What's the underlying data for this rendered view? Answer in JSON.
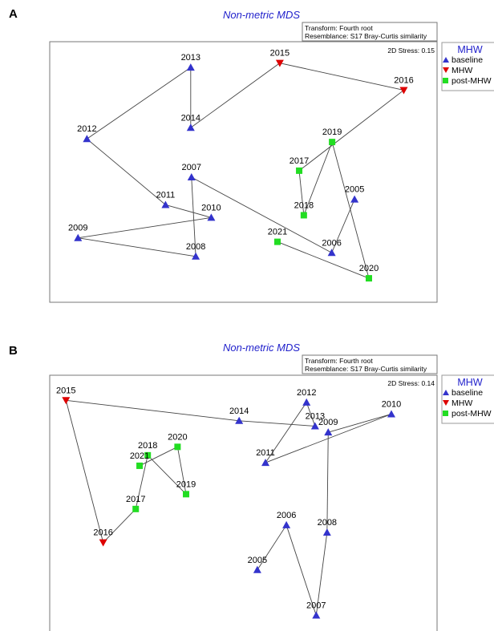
{
  "colors": {
    "baseline": "#3333cc",
    "MHW": "#dd0000",
    "post-MHW": "#22dd22",
    "title": "#2222cc",
    "line": "#444444"
  },
  "legend": {
    "title": "MHW",
    "entries": [
      {
        "group": "baseline",
        "label": "baseline",
        "marker": "triangle-up"
      },
      {
        "group": "MHW",
        "label": "MHW",
        "marker": "triangle-down"
      },
      {
        "group": "post-MHW",
        "label": "post-MHW",
        "marker": "square"
      }
    ]
  },
  "chart_data": [
    {
      "panel": "A",
      "type": "scatter",
      "title": "Non-metric MDS",
      "transform": "Transform: Fourth root",
      "resemblance": "Resemblance: S17 Bray-Curtis similarity",
      "stress": "2D Stress: 0.15",
      "xlim": [
        0,
        100
      ],
      "ylim": [
        0,
        100
      ],
      "points": [
        {
          "label": "2005",
          "x": 78.7,
          "y": 39.5,
          "group": "baseline"
        },
        {
          "label": "2006",
          "x": 72.8,
          "y": 19.0,
          "group": "baseline"
        },
        {
          "label": "2007",
          "x": 36.6,
          "y": 48.0,
          "group": "baseline"
        },
        {
          "label": "2008",
          "x": 37.7,
          "y": 17.6,
          "group": "baseline"
        },
        {
          "label": "2009",
          "x": 7.3,
          "y": 24.7,
          "group": "baseline"
        },
        {
          "label": "2010",
          "x": 41.7,
          "y": 32.5,
          "group": "baseline"
        },
        {
          "label": "2011",
          "x": 29.9,
          "y": 37.4,
          "group": "baseline"
        },
        {
          "label": "2012",
          "x": 9.6,
          "y": 62.7,
          "group": "baseline"
        },
        {
          "label": "2013",
          "x": 36.4,
          "y": 90.1,
          "group": "baseline"
        },
        {
          "label": "2014",
          "x": 36.4,
          "y": 67.0,
          "group": "baseline"
        },
        {
          "label": "2015",
          "x": 59.4,
          "y": 91.8,
          "group": "MHW"
        },
        {
          "label": "2016",
          "x": 91.4,
          "y": 81.4,
          "group": "MHW"
        },
        {
          "label": "2017",
          "x": 64.4,
          "y": 50.5,
          "group": "post-MHW"
        },
        {
          "label": "2018",
          "x": 65.6,
          "y": 33.4,
          "group": "post-MHW"
        },
        {
          "label": "2019",
          "x": 72.9,
          "y": 61.5,
          "group": "post-MHW"
        },
        {
          "label": "2020",
          "x": 82.4,
          "y": 9.2,
          "group": "post-MHW"
        },
        {
          "label": "2021",
          "x": 58.8,
          "y": 23.2,
          "group": "post-MHW"
        }
      ],
      "trajectory": [
        "2005",
        "2006",
        "2007",
        "2008",
        "2009",
        "2010",
        "2011",
        "2012",
        "2013",
        "2014",
        "2015",
        "2016",
        "2017",
        "2018",
        "2019",
        "2020",
        "2021"
      ]
    },
    {
      "panel": "B",
      "type": "scatter",
      "title": "Non-metric MDS",
      "transform": "Transform: Fourth root",
      "resemblance": "Resemblance: S17 Bray-Curtis similarity",
      "stress": "2D Stress: 0.14",
      "xlim": [
        0,
        100
      ],
      "ylim": [
        0,
        100
      ],
      "points": [
        {
          "label": "2005",
          "x": 53.6,
          "y": 23.9,
          "group": "baseline"
        },
        {
          "label": "2006",
          "x": 61.1,
          "y": 41.4,
          "group": "baseline"
        },
        {
          "label": "2007",
          "x": 68.8,
          "y": 6.1,
          "group": "baseline"
        },
        {
          "label": "2008",
          "x": 71.6,
          "y": 38.5,
          "group": "baseline"
        },
        {
          "label": "2009",
          "x": 71.9,
          "y": 77.7,
          "group": "baseline"
        },
        {
          "label": "2010",
          "x": 88.2,
          "y": 84.8,
          "group": "baseline"
        },
        {
          "label": "2011",
          "x": 55.7,
          "y": 65.8,
          "group": "baseline"
        },
        {
          "label": "2012",
          "x": 66.3,
          "y": 89.4,
          "group": "baseline"
        },
        {
          "label": "2013",
          "x": 68.5,
          "y": 80.1,
          "group": "baseline"
        },
        {
          "label": "2014",
          "x": 48.9,
          "y": 82.2,
          "group": "baseline"
        },
        {
          "label": "2015",
          "x": 4.2,
          "y": 90.2,
          "group": "MHW"
        },
        {
          "label": "2016",
          "x": 13.8,
          "y": 34.6,
          "group": "MHW"
        },
        {
          "label": "2017",
          "x": 22.2,
          "y": 47.7,
          "group": "post-MHW"
        },
        {
          "label": "2018",
          "x": 25.3,
          "y": 68.7,
          "group": "post-MHW"
        },
        {
          "label": "2019",
          "x": 35.2,
          "y": 53.5,
          "group": "post-MHW"
        },
        {
          "label": "2020",
          "x": 33.0,
          "y": 72.0,
          "group": "post-MHW"
        },
        {
          "label": "2021",
          "x": 23.2,
          "y": 64.6,
          "group": "post-MHW"
        }
      ],
      "trajectory": [
        "2005",
        "2006",
        "2007",
        "2008",
        "2009",
        "2010",
        "2011",
        "2012",
        "2013",
        "2014",
        "2015",
        "2016",
        "2017",
        "2018",
        "2019",
        "2020",
        "2021"
      ]
    }
  ]
}
